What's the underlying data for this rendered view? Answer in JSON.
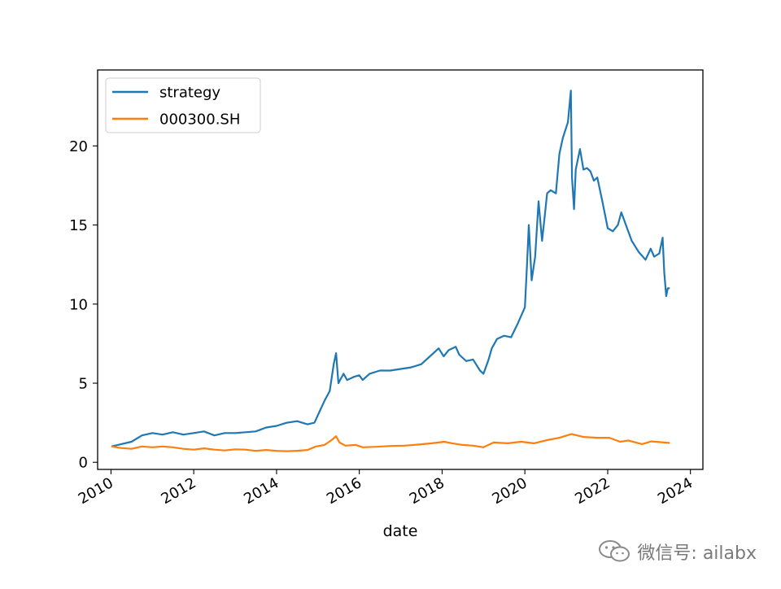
{
  "chart_data": {
    "type": "line",
    "title": "",
    "xlabel": "date",
    "ylabel": "",
    "xlim": [
      "2009-09-05",
      "2024-04-20"
    ],
    "ylim": [
      -0.45,
      24.8
    ],
    "x_ticks": [
      "2010",
      "2012",
      "2014",
      "2016",
      "2018",
      "2020",
      "2022",
      "2024"
    ],
    "y_ticks": [
      "0",
      "5",
      "10",
      "15",
      "20"
    ],
    "legend": "top-left",
    "grid": false,
    "series": [
      {
        "name": "strategy",
        "color": "#1f77b4",
        "x": [
          "2010-01-04",
          "2010-04-01",
          "2010-07-01",
          "2010-10-01",
          "2011-01-01",
          "2011-04-01",
          "2011-07-01",
          "2011-10-01",
          "2012-01-01",
          "2012-04-01",
          "2012-07-01",
          "2012-10-01",
          "2013-01-01",
          "2013-04-01",
          "2013-07-01",
          "2013-10-01",
          "2014-01-01",
          "2014-04-01",
          "2014-07-01",
          "2014-10-01",
          "2014-12-01",
          "2015-01-15",
          "2015-03-01",
          "2015-04-15",
          "2015-05-20",
          "2015-06-10",
          "2015-07-01",
          "2015-08-15",
          "2015-09-15",
          "2015-11-15",
          "2016-01-01",
          "2016-01-31",
          "2016-04-01",
          "2016-07-01",
          "2016-10-01",
          "2017-01-01",
          "2017-04-01",
          "2017-07-01",
          "2017-10-01",
          "2017-12-01",
          "2018-01-15",
          "2018-03-01",
          "2018-05-01",
          "2018-06-01",
          "2018-08-01",
          "2018-10-01",
          "2018-12-01",
          "2019-01-01",
          "2019-02-15",
          "2019-03-15",
          "2019-05-01",
          "2019-07-01",
          "2019-09-01",
          "2019-11-01",
          "2020-01-01",
          "2020-01-20",
          "2020-02-05",
          "2020-03-01",
          "2020-04-01",
          "2020-05-01",
          "2020-06-01",
          "2020-07-01",
          "2020-07-15",
          "2020-08-15",
          "2020-10-01",
          "2020-11-01",
          "2020-12-01",
          "2021-01-15",
          "2021-02-10",
          "2021-02-20",
          "2021-03-10",
          "2021-03-25",
          "2021-05-01",
          "2021-06-01",
          "2021-07-01",
          "2021-08-01",
          "2021-09-01",
          "2021-10-01",
          "2021-11-15",
          "2022-01-01",
          "2022-02-15",
          "2022-04-01",
          "2022-05-01",
          "2022-07-01",
          "2022-08-01",
          "2022-10-01",
          "2022-12-01",
          "2023-01-15",
          "2023-02-15",
          "2023-04-01",
          "2023-05-01",
          "2023-05-15",
          "2023-06-01",
          "2023-06-15",
          "2023-07-03"
        ],
        "values": [
          1.0,
          1.15,
          1.3,
          1.7,
          1.85,
          1.75,
          1.9,
          1.75,
          1.85,
          1.95,
          1.7,
          1.85,
          1.85,
          1.9,
          1.95,
          2.2,
          2.3,
          2.5,
          2.6,
          2.4,
          2.5,
          3.2,
          3.9,
          4.5,
          6.2,
          6.9,
          5.0,
          5.6,
          5.2,
          5.4,
          5.5,
          5.2,
          5.6,
          5.8,
          5.8,
          5.9,
          6.0,
          6.2,
          6.8,
          7.2,
          6.7,
          7.1,
          7.3,
          6.8,
          6.4,
          6.5,
          5.8,
          5.6,
          6.5,
          7.2,
          7.8,
          8.0,
          7.9,
          8.8,
          9.8,
          12.5,
          15.0,
          11.5,
          13.0,
          16.5,
          14.0,
          16.0,
          17.0,
          17.2,
          17.0,
          19.5,
          20.5,
          21.5,
          23.5,
          18.0,
          16.0,
          18.5,
          19.8,
          18.5,
          18.6,
          18.4,
          17.8,
          18.0,
          16.5,
          14.8,
          14.6,
          15.0,
          15.8,
          14.6,
          14.0,
          13.3,
          12.8,
          13.5,
          13.0,
          13.2,
          14.2,
          12.0,
          10.5,
          11.0,
          11.0
        ]
      },
      {
        "name": "000300.SH",
        "color": "#ff7f0e",
        "x": [
          "2010-01-04",
          "2010-04-01",
          "2010-07-01",
          "2010-10-01",
          "2011-01-01",
          "2011-04-01",
          "2011-07-01",
          "2011-10-01",
          "2012-01-01",
          "2012-04-01",
          "2012-07-01",
          "2012-10-01",
          "2013-01-01",
          "2013-04-01",
          "2013-07-01",
          "2013-10-01",
          "2014-01-01",
          "2014-04-01",
          "2014-07-01",
          "2014-10-01",
          "2014-12-15",
          "2015-03-01",
          "2015-05-01",
          "2015-06-10",
          "2015-07-10",
          "2015-09-01",
          "2015-12-01",
          "2016-02-01",
          "2016-06-01",
          "2016-10-01",
          "2017-02-01",
          "2017-06-01",
          "2017-10-01",
          "2018-01-20",
          "2018-04-01",
          "2018-07-01",
          "2018-10-01",
          "2018-12-31",
          "2019-04-01",
          "2019-08-01",
          "2019-12-01",
          "2020-03-20",
          "2020-07-15",
          "2020-11-01",
          "2021-02-15",
          "2021-06-01",
          "2021-10-01",
          "2022-01-15",
          "2022-04-20",
          "2022-07-01",
          "2022-10-31",
          "2023-01-20",
          "2023-04-01",
          "2023-07-03"
        ],
        "values": [
          1.0,
          0.9,
          0.85,
          1.0,
          0.95,
          1.0,
          0.95,
          0.85,
          0.8,
          0.88,
          0.8,
          0.75,
          0.82,
          0.8,
          0.72,
          0.78,
          0.72,
          0.7,
          0.73,
          0.78,
          1.0,
          1.1,
          1.4,
          1.65,
          1.25,
          1.05,
          1.1,
          0.95,
          0.98,
          1.03,
          1.05,
          1.12,
          1.2,
          1.3,
          1.2,
          1.1,
          1.05,
          0.95,
          1.25,
          1.2,
          1.3,
          1.2,
          1.4,
          1.55,
          1.78,
          1.6,
          1.55,
          1.55,
          1.3,
          1.38,
          1.15,
          1.32,
          1.28,
          1.22
        ]
      }
    ]
  },
  "watermark": {
    "text": "微信号: ailabx",
    "icon": "wechat-icon"
  }
}
